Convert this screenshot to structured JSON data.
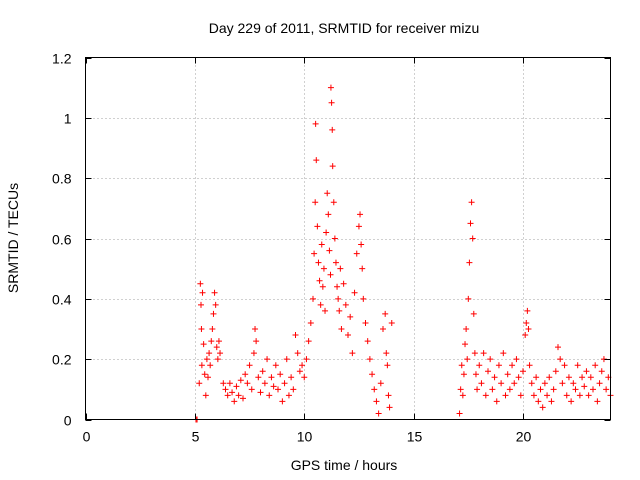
{
  "chart_data": {
    "type": "scatter",
    "title": "Day 229 of 2011, SRMTID for receiver mizu",
    "xlabel": "GPS time / hours",
    "ylabel": "SRMTID / TECUs",
    "xlim": [
      0,
      24
    ],
    "ylim": [
      0,
      1.2
    ],
    "xticks": [
      0,
      5,
      10,
      15,
      20
    ],
    "xtick_labels": [
      "0",
      "5",
      "10",
      "15",
      "20"
    ],
    "yticks": [
      0,
      0.2,
      0.4,
      0.6,
      0.8,
      1,
      1.2
    ],
    "ytick_labels": [
      "0",
      "0.2",
      "0.4",
      "0.6",
      "0.8",
      "1",
      "1.2"
    ],
    "grid": true,
    "marker": "+",
    "color": "#ff0000",
    "series": [
      {
        "name": "SRMTID",
        "points": [
          [
            5.05,
            0.0
          ],
          [
            5.1,
            0.0
          ],
          [
            5.2,
            0.12
          ],
          [
            5.25,
            0.45
          ],
          [
            5.28,
            0.38
          ],
          [
            5.3,
            0.3
          ],
          [
            5.32,
            0.18
          ],
          [
            5.35,
            0.42
          ],
          [
            5.4,
            0.25
          ],
          [
            5.45,
            0.15
          ],
          [
            5.5,
            0.08
          ],
          [
            5.55,
            0.2
          ],
          [
            5.6,
            0.14
          ],
          [
            5.65,
            0.22
          ],
          [
            5.7,
            0.18
          ],
          [
            5.75,
            0.26
          ],
          [
            5.8,
            0.3
          ],
          [
            5.85,
            0.35
          ],
          [
            5.9,
            0.42
          ],
          [
            5.95,
            0.38
          ],
          [
            6.0,
            0.24
          ],
          [
            6.05,
            0.2
          ],
          [
            6.1,
            0.26
          ],
          [
            6.15,
            0.22
          ],
          [
            6.3,
            0.12
          ],
          [
            6.4,
            0.1
          ],
          [
            6.5,
            0.08
          ],
          [
            6.6,
            0.12
          ],
          [
            6.7,
            0.09
          ],
          [
            6.8,
            0.06
          ],
          [
            6.9,
            0.11
          ],
          [
            7.0,
            0.08
          ],
          [
            7.1,
            0.13
          ],
          [
            7.2,
            0.07
          ],
          [
            7.3,
            0.15
          ],
          [
            7.4,
            0.12
          ],
          [
            7.5,
            0.18
          ],
          [
            7.6,
            0.1
          ],
          [
            7.7,
            0.22
          ],
          [
            7.75,
            0.3
          ],
          [
            7.8,
            0.26
          ],
          [
            7.9,
            0.14
          ],
          [
            8.0,
            0.09
          ],
          [
            8.1,
            0.16
          ],
          [
            8.2,
            0.12
          ],
          [
            8.3,
            0.2
          ],
          [
            8.4,
            0.08
          ],
          [
            8.5,
            0.14
          ],
          [
            8.6,
            0.11
          ],
          [
            8.7,
            0.18
          ],
          [
            8.8,
            0.1
          ],
          [
            8.9,
            0.15
          ],
          [
            9.0,
            0.06
          ],
          [
            9.1,
            0.12
          ],
          [
            9.2,
            0.2
          ],
          [
            9.3,
            0.08
          ],
          [
            9.4,
            0.14
          ],
          [
            9.5,
            0.1
          ],
          [
            9.6,
            0.28
          ],
          [
            9.7,
            0.22
          ],
          [
            9.8,
            0.16
          ],
          [
            9.9,
            0.18
          ],
          [
            10.0,
            0.14
          ],
          [
            10.1,
            0.2
          ],
          [
            10.2,
            0.26
          ],
          [
            10.3,
            0.32
          ],
          [
            10.4,
            0.4
          ],
          [
            10.45,
            0.55
          ],
          [
            10.5,
            0.72
          ],
          [
            10.52,
            0.98
          ],
          [
            10.55,
            0.86
          ],
          [
            10.6,
            0.64
          ],
          [
            10.65,
            0.52
          ],
          [
            10.7,
            0.46
          ],
          [
            10.75,
            0.38
          ],
          [
            10.8,
            0.58
          ],
          [
            10.85,
            0.44
          ],
          [
            10.9,
            0.5
          ],
          [
            10.95,
            0.36
          ],
          [
            11.0,
            0.62
          ],
          [
            11.05,
            0.75
          ],
          [
            11.1,
            0.68
          ],
          [
            11.15,
            0.56
          ],
          [
            11.2,
            0.48
          ],
          [
            11.22,
            1.1
          ],
          [
            11.25,
            1.05
          ],
          [
            11.28,
            0.96
          ],
          [
            11.3,
            0.84
          ],
          [
            11.35,
            0.72
          ],
          [
            11.4,
            0.6
          ],
          [
            11.45,
            0.52
          ],
          [
            11.5,
            0.44
          ],
          [
            11.55,
            0.4
          ],
          [
            11.6,
            0.36
          ],
          [
            11.65,
            0.5
          ],
          [
            11.7,
            0.3
          ],
          [
            11.8,
            0.45
          ],
          [
            11.9,
            0.38
          ],
          [
            12.0,
            0.28
          ],
          [
            12.1,
            0.34
          ],
          [
            12.2,
            0.22
          ],
          [
            12.3,
            0.42
          ],
          [
            12.4,
            0.55
          ],
          [
            12.5,
            0.64
          ],
          [
            12.55,
            0.68
          ],
          [
            12.6,
            0.58
          ],
          [
            12.65,
            0.5
          ],
          [
            12.7,
            0.4
          ],
          [
            12.8,
            0.32
          ],
          [
            12.9,
            0.26
          ],
          [
            13.0,
            0.2
          ],
          [
            13.1,
            0.15
          ],
          [
            13.2,
            0.1
          ],
          [
            13.3,
            0.06
          ],
          [
            13.4,
            0.02
          ],
          [
            13.5,
            0.12
          ],
          [
            13.6,
            0.3
          ],
          [
            13.7,
            0.35
          ],
          [
            13.75,
            0.22
          ],
          [
            13.8,
            0.18
          ],
          [
            13.85,
            0.08
          ],
          [
            13.9,
            0.04
          ],
          [
            14.0,
            0.32
          ],
          [
            17.1,
            0.02
          ],
          [
            17.15,
            0.1
          ],
          [
            17.2,
            0.18
          ],
          [
            17.25,
            0.08
          ],
          [
            17.3,
            0.15
          ],
          [
            17.35,
            0.25
          ],
          [
            17.4,
            0.3
          ],
          [
            17.45,
            0.2
          ],
          [
            17.5,
            0.4
          ],
          [
            17.55,
            0.52
          ],
          [
            17.6,
            0.65
          ],
          [
            17.65,
            0.72
          ],
          [
            17.7,
            0.6
          ],
          [
            17.75,
            0.35
          ],
          [
            17.8,
            0.22
          ],
          [
            17.85,
            0.15
          ],
          [
            17.9,
            0.1
          ],
          [
            18.0,
            0.18
          ],
          [
            18.1,
            0.12
          ],
          [
            18.2,
            0.22
          ],
          [
            18.3,
            0.08
          ],
          [
            18.4,
            0.16
          ],
          [
            18.5,
            0.2
          ],
          [
            18.6,
            0.1
          ],
          [
            18.7,
            0.14
          ],
          [
            18.8,
            0.06
          ],
          [
            18.9,
            0.18
          ],
          [
            19.0,
            0.12
          ],
          [
            19.1,
            0.22
          ],
          [
            19.2,
            0.08
          ],
          [
            19.3,
            0.15
          ],
          [
            19.4,
            0.1
          ],
          [
            19.5,
            0.18
          ],
          [
            19.6,
            0.12
          ],
          [
            19.7,
            0.2
          ],
          [
            19.8,
            0.14
          ],
          [
            19.9,
            0.08
          ],
          [
            20.0,
            0.16
          ],
          [
            20.1,
            0.28
          ],
          [
            20.15,
            0.32
          ],
          [
            20.2,
            0.36
          ],
          [
            20.25,
            0.3
          ],
          [
            20.3,
            0.18
          ],
          [
            20.4,
            0.12
          ],
          [
            20.5,
            0.08
          ],
          [
            20.6,
            0.14
          ],
          [
            20.7,
            0.06
          ],
          [
            20.8,
            0.1
          ],
          [
            20.9,
            0.04
          ],
          [
            21.0,
            0.12
          ],
          [
            21.1,
            0.08
          ],
          [
            21.2,
            0.14
          ],
          [
            21.3,
            0.06
          ],
          [
            21.4,
            0.1
          ],
          [
            21.5,
            0.16
          ],
          [
            21.6,
            0.24
          ],
          [
            21.7,
            0.2
          ],
          [
            21.8,
            0.12
          ],
          [
            21.9,
            0.18
          ],
          [
            22.0,
            0.08
          ],
          [
            22.1,
            0.14
          ],
          [
            22.2,
            0.06
          ],
          [
            22.3,
            0.12
          ],
          [
            22.4,
            0.1
          ],
          [
            22.5,
            0.18
          ],
          [
            22.6,
            0.08
          ],
          [
            22.7,
            0.14
          ],
          [
            22.8,
            0.11
          ],
          [
            22.9,
            0.16
          ],
          [
            23.0,
            0.08
          ],
          [
            23.1,
            0.14
          ],
          [
            23.2,
            0.1
          ],
          [
            23.3,
            0.18
          ],
          [
            23.4,
            0.06
          ],
          [
            23.5,
            0.12
          ],
          [
            23.6,
            0.16
          ],
          [
            23.7,
            0.2
          ],
          [
            23.8,
            0.1
          ],
          [
            23.9,
            0.14
          ],
          [
            24.0,
            0.08
          ]
        ]
      }
    ]
  }
}
